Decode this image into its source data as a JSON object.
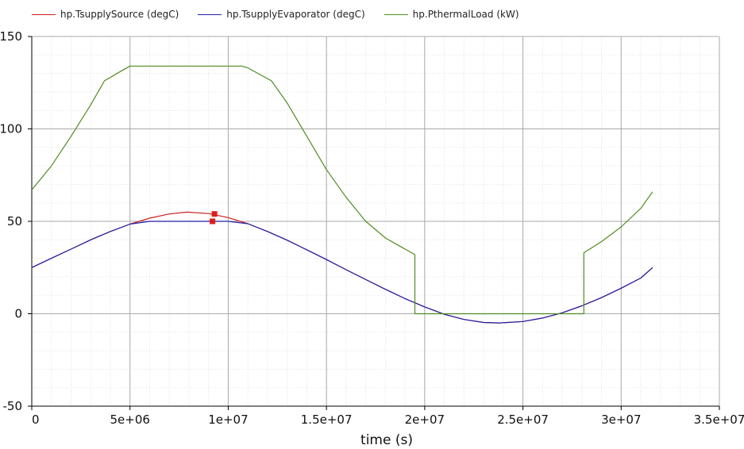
{
  "chart_data": {
    "type": "line",
    "title": "",
    "xlabel": "time (s)",
    "ylabel": "",
    "xlim": [
      0,
      35000000
    ],
    "ylim": [
      -50,
      150
    ],
    "xticks": [
      0,
      5000000,
      10000000,
      15000000,
      20000000,
      25000000,
      30000000,
      35000000
    ],
    "xtick_labels": [
      "0",
      "5e+06",
      "1e+07",
      "1.5e+07",
      "2e+07",
      "2.5e+07",
      "3e+07",
      "3.5e+07"
    ],
    "yticks": [
      -50,
      0,
      50,
      100,
      150
    ],
    "ytick_labels": [
      "-50",
      "0",
      "50",
      "100",
      "150"
    ],
    "grid": true,
    "legend_position": "top-left",
    "series": [
      {
        "name": "hp.TsupplySource (degC)",
        "color": "#cc1f1f",
        "x": [
          0,
          1000000,
          2000000,
          3000000,
          4000000,
          5000000,
          6000000,
          7000000,
          7900000,
          9000000,
          10000000,
          11000000,
          12000000,
          13000000,
          14000000,
          15000000,
          16000000,
          17000000,
          18000000,
          19000000,
          20000000,
          21000000,
          22000000,
          23000000,
          23800000,
          25000000,
          26000000,
          27000000,
          28000000,
          29000000,
          30000000,
          31000000,
          31600000
        ],
        "y": [
          25,
          30,
          35,
          40,
          44.5,
          48.5,
          51.7,
          54,
          55,
          54.2,
          52,
          48.7,
          44.5,
          39.8,
          34.6,
          29.3,
          23.8,
          18.5,
          13.2,
          8.2,
          3.7,
          -0.3,
          -3.1,
          -4.7,
          -5,
          -4.2,
          -2.3,
          0.5,
          4.3,
          8.7,
          13.8,
          19.3,
          25
        ]
      },
      {
        "name": "hp.TsupplyEvaporator (degC)",
        "color": "#1f1fa8",
        "x": [
          0,
          1000000,
          2000000,
          3000000,
          4000000,
          5000000,
          6000000,
          7000000,
          8000000,
          9000000,
          10000000,
          11000000,
          12000000,
          13000000,
          14000000,
          15000000,
          16000000,
          17000000,
          18000000,
          19000000,
          20000000,
          21000000,
          22000000,
          23000000,
          23800000,
          25000000,
          26000000,
          27000000,
          28000000,
          29000000,
          30000000,
          31000000,
          31600000
        ],
        "y": [
          25,
          30,
          35,
          40,
          44.5,
          48.5,
          50,
          50,
          50,
          50,
          50,
          48.7,
          44.5,
          39.8,
          34.6,
          29.3,
          23.8,
          18.5,
          13.2,
          8.2,
          3.7,
          -0.3,
          -3.1,
          -4.7,
          -5,
          -4.2,
          -2.3,
          0.5,
          4.3,
          8.7,
          13.8,
          19.3,
          25
        ]
      },
      {
        "name": "hp.PthermalLoad (kW)",
        "color": "#4d8c1f",
        "x": [
          0,
          1000000,
          2000000,
          3000000,
          3700000,
          4500000,
          5000000,
          6000000,
          8000000,
          10700000,
          11000000,
          12200000,
          13000000,
          14000000,
          15000000,
          16000000,
          17000000,
          18000000,
          19000000,
          19500000,
          19500001,
          28100000,
          28100001,
          29000000,
          30000000,
          31000000,
          31600000
        ],
        "y": [
          67,
          80,
          96,
          113,
          126,
          131,
          134,
          134,
          134,
          134,
          133,
          126,
          114,
          96,
          78,
          63,
          50,
          41,
          35,
          32,
          0,
          0,
          33,
          39,
          47,
          57,
          66
        ]
      }
    ],
    "markers": [
      {
        "x": 9300000,
        "y": 54,
        "color": "#e01b1b"
      },
      {
        "x": 9200000,
        "y": 50,
        "color": "#e01b1b"
      }
    ]
  }
}
